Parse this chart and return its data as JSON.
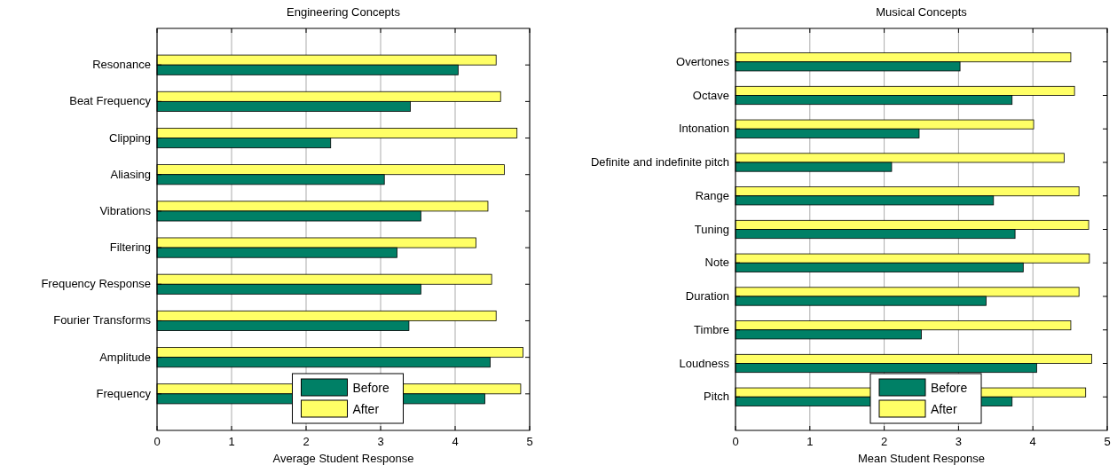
{
  "chart_data": [
    {
      "type": "bar",
      "orientation": "horizontal",
      "title": "Engineering Concepts",
      "xlabel": "Average Student Response",
      "categories": [
        "Resonance",
        "Beat Frequency",
        "Clipping",
        "Aliasing",
        "Vibrations",
        "Filtering",
        "Frequency Response",
        "Fourier Transforms",
        "Amplitude",
        "Frequency"
      ],
      "series": [
        {
          "name": "After",
          "color": "#ffff66",
          "values": [
            4.55,
            4.61,
            4.83,
            4.66,
            4.44,
            4.28,
            4.49,
            4.55,
            4.91,
            4.88
          ]
        },
        {
          "name": "Before",
          "color": "#008066",
          "values": [
            4.04,
            3.4,
            2.33,
            3.05,
            3.54,
            3.22,
            3.54,
            3.38,
            4.47,
            4.4
          ]
        }
      ],
      "xlim": [
        0,
        5
      ],
      "xticks": [
        0,
        1,
        2,
        3,
        4,
        5
      ],
      "grid": "x",
      "legend": "bottom"
    },
    {
      "type": "bar",
      "orientation": "horizontal",
      "title": "Musical Concepts",
      "xlabel": "Mean Student Response",
      "categories": [
        "Overtones",
        "Octave",
        "Intonation",
        "Definite and indefinite pitch",
        "Range",
        "Tuning",
        "Note",
        "Duration",
        "Timbre",
        "Loudness",
        "Pitch"
      ],
      "series": [
        {
          "name": "After",
          "color": "#ffff66",
          "values": [
            4.51,
            4.56,
            4.01,
            4.42,
            4.62,
            4.75,
            4.76,
            4.62,
            4.51,
            4.79,
            4.71
          ]
        },
        {
          "name": "Before",
          "color": "#008066",
          "values": [
            3.02,
            3.72,
            2.47,
            2.1,
            3.47,
            3.76,
            3.87,
            3.37,
            2.5,
            4.05,
            3.72
          ]
        }
      ],
      "xlim": [
        0,
        5
      ],
      "xticks": [
        0,
        1,
        2,
        3,
        4,
        5
      ],
      "grid": "x",
      "legend": "bottom"
    }
  ]
}
